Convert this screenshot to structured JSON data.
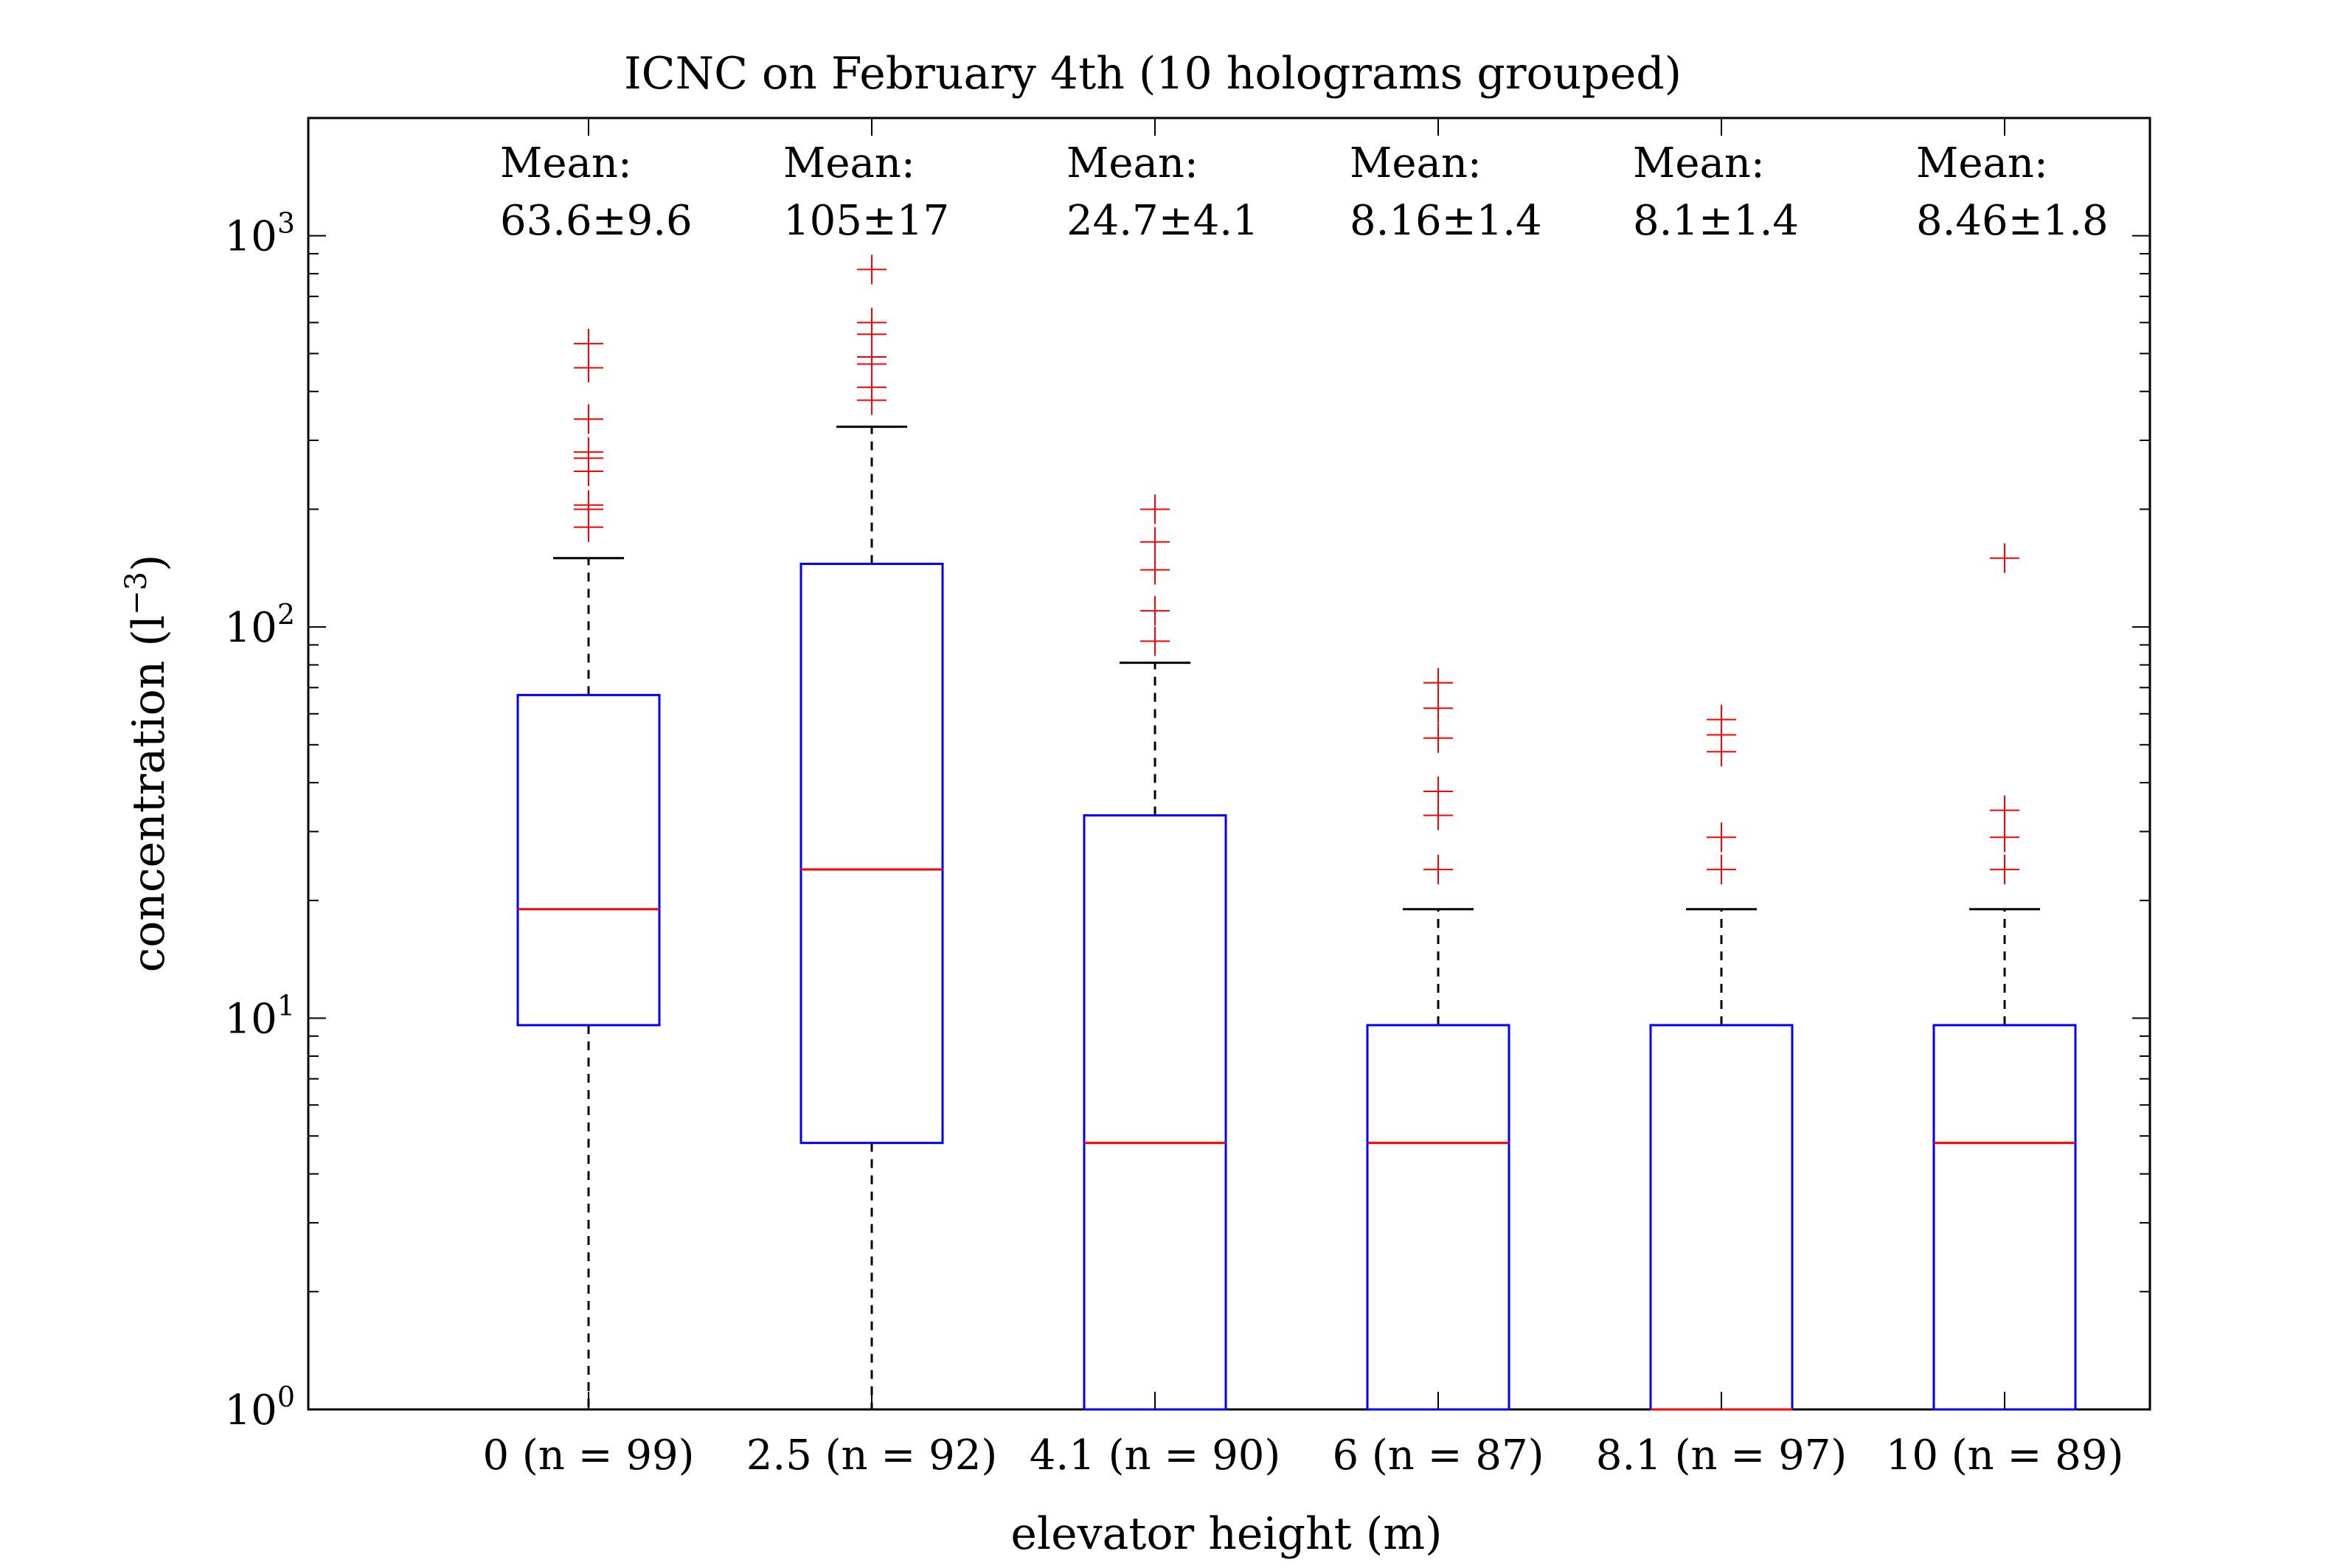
{
  "chart_data": {
    "type": "box",
    "title": "ICNC on February 4th (10 holograms grouped)",
    "xlabel": "elevator height (m)",
    "ylabel_main": "concentration (l",
    "ylabel_sup": "−3",
    "ylabel_end": ")",
    "y_scale": "log",
    "ylim": [
      1,
      2000
    ],
    "y_ticks": [
      {
        "value": 1,
        "base": "10",
        "exp": "0"
      },
      {
        "value": 10,
        "base": "10",
        "exp": "1"
      },
      {
        "value": 100,
        "base": "10",
        "exp": "2"
      },
      {
        "value": 1000,
        "base": "10",
        "exp": "3"
      }
    ],
    "mean_heading": "Mean:",
    "categories": [
      "0 (n = 99)",
      "2.5 (n = 92)",
      "4.1 (n = 90)",
      "6 (n = 87)",
      "8.1 (n = 97)",
      "10 (n = 89)"
    ],
    "boxes": [
      {
        "label": "0 (n = 99)",
        "mean_text": "63.6±9.6",
        "whisker_low": 1,
        "q1": 9.6,
        "median": 19,
        "q3": 67,
        "whisker_high": 150,
        "outliers": [
          180,
          200,
          205,
          250,
          270,
          280,
          340,
          460,
          530
        ]
      },
      {
        "label": "2.5 (n = 92)",
        "mean_text": "105±17",
        "whisker_low": 1,
        "q1": 4.8,
        "median": 24,
        "q3": 145,
        "whisker_high": 325,
        "outliers": [
          380,
          410,
          470,
          490,
          560,
          600,
          820
        ]
      },
      {
        "label": "4.1 (n = 90)",
        "mean_text": "24.7±4.1",
        "whisker_low": 1,
        "q1": 1,
        "median": 4.8,
        "q3": 33,
        "whisker_high": 81,
        "outliers": [
          92,
          110,
          140,
          165,
          200
        ]
      },
      {
        "label": "6 (n = 87)",
        "mean_text": "8.16±1.4",
        "whisker_low": 1,
        "q1": 1,
        "median": 4.8,
        "q3": 9.6,
        "whisker_high": 19,
        "outliers": [
          24,
          33,
          38,
          52,
          62,
          72
        ]
      },
      {
        "label": "8.1 (n = 97)",
        "mean_text": "8.1±1.4",
        "whisker_low": 1,
        "q1": 1,
        "median": 1,
        "q3": 9.6,
        "whisker_high": 19,
        "outliers": [
          24,
          29,
          48,
          53,
          58
        ]
      },
      {
        "label": "10 (n = 89)",
        "mean_text": "8.46±1.8",
        "whisker_low": 1,
        "q1": 1,
        "median": 4.8,
        "q3": 9.6,
        "whisker_high": 19,
        "outliers": [
          24,
          29,
          34,
          150
        ]
      }
    ],
    "grid": false,
    "colors": {
      "box": "#0000ff",
      "median": "#ff0000",
      "outlier": "#ff0000",
      "whisker": "#000000",
      "axes": "#000000"
    }
  }
}
